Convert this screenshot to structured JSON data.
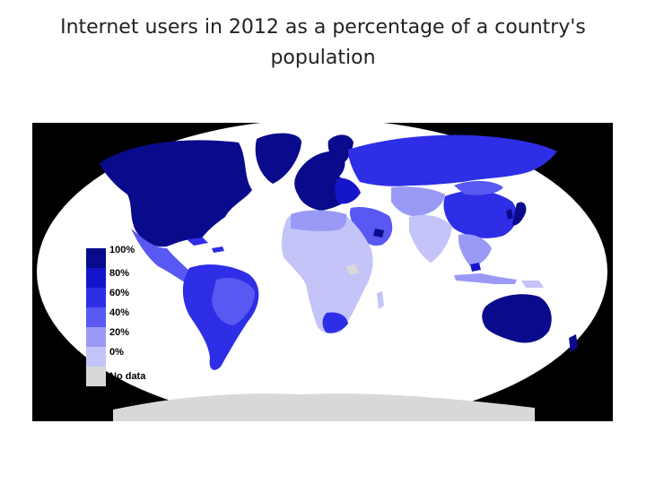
{
  "slide": {
    "title_line1": "Internet users in 2012 as a percentage of a country's",
    "title_line2": "population"
  },
  "map": {
    "ocean_color": "#ffffff",
    "frame_color": "#000000",
    "legend": {
      "labels": [
        "100%",
        "80%",
        "60%",
        "40%",
        "20%",
        "0%",
        "No data"
      ],
      "colors": [
        "#0a0a8c",
        "#1515c8",
        "#2e2ee6",
        "#5858f2",
        "#9a9af6",
        "#c4c4f8",
        "#d8d8d8"
      ]
    },
    "regions": [
      {
        "name": "North America",
        "level": "80-100%"
      },
      {
        "name": "Greenland",
        "level": "80-100%"
      },
      {
        "name": "Europe",
        "level": "60-100%"
      },
      {
        "name": "Russia",
        "level": "40-60%"
      },
      {
        "name": "Central America",
        "level": "20-40%"
      },
      {
        "name": "South America",
        "level": "20-60%"
      },
      {
        "name": "Africa",
        "level": "0-20%"
      },
      {
        "name": "Middle East",
        "level": "20-60%"
      },
      {
        "name": "Central Asia",
        "level": "20-40%"
      },
      {
        "name": "South Asia",
        "level": "0-20%"
      },
      {
        "name": "China",
        "level": "40-60%"
      },
      {
        "name": "Southeast Asia",
        "level": "20-40%"
      },
      {
        "name": "Japan",
        "level": "80-100%"
      },
      {
        "name": "Australia",
        "level": "80-100%"
      },
      {
        "name": "Antarctica",
        "level": "No data"
      }
    ]
  }
}
